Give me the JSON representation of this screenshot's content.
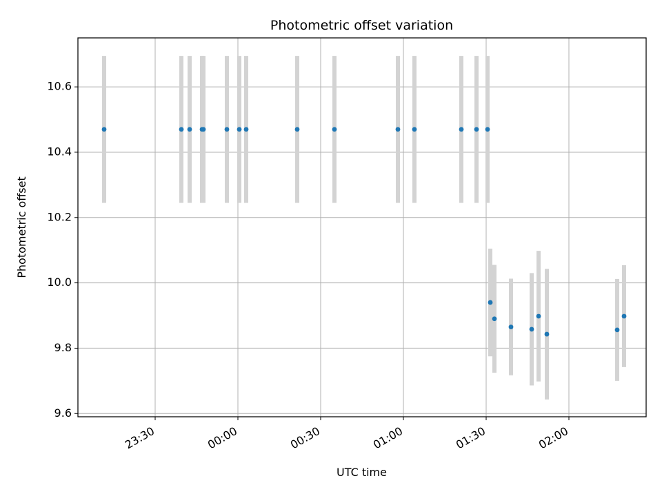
{
  "chart_data": {
    "type": "scatter",
    "title": "Photometric offset variation",
    "xlabel": "UTC time",
    "ylabel": "Photometric offset",
    "x_axis_kind": "time",
    "xlim": [
      "23:02:00",
      "02:28:00"
    ],
    "ylim": [
      9.59,
      10.75
    ],
    "grid": true,
    "x_ticks": [
      "23:30",
      "00:00",
      "00:30",
      "01:00",
      "01:30",
      "02:00"
    ],
    "y_ticks": [
      9.6,
      9.8,
      10.0,
      10.2,
      10.4,
      10.6
    ],
    "y_tick_labels": [
      "9.6",
      "9.8",
      "10.0",
      "10.2",
      "10.4",
      "10.6"
    ],
    "point_color": "#1f77b4",
    "errorbar_color": "#d3d3d3",
    "points": [
      {
        "t": "23:11:30",
        "y": 10.47,
        "err": 0.225
      },
      {
        "t": "23:39:30",
        "y": 10.47,
        "err": 0.225
      },
      {
        "t": "23:42:30",
        "y": 10.47,
        "err": 0.225
      },
      {
        "t": "23:47:00",
        "y": 10.47,
        "err": 0.225
      },
      {
        "t": "23:47:30",
        "y": 10.47,
        "err": 0.225
      },
      {
        "t": "23:56:00",
        "y": 10.47,
        "err": 0.225
      },
      {
        "t": "00:00:30",
        "y": 10.47,
        "err": 0.225
      },
      {
        "t": "00:03:00",
        "y": 10.47,
        "err": 0.225
      },
      {
        "t": "00:21:30",
        "y": 10.47,
        "err": 0.225
      },
      {
        "t": "00:35:00",
        "y": 10.47,
        "err": 0.225
      },
      {
        "t": "00:58:00",
        "y": 10.47,
        "err": 0.225
      },
      {
        "t": "01:04:00",
        "y": 10.47,
        "err": 0.225
      },
      {
        "t": "01:21:00",
        "y": 10.47,
        "err": 0.225
      },
      {
        "t": "01:26:30",
        "y": 10.47,
        "err": 0.225
      },
      {
        "t": "01:30:30",
        "y": 10.47,
        "err": 0.225
      },
      {
        "t": "01:31:30",
        "y": 9.94,
        "err": 0.165
      },
      {
        "t": "01:33:00",
        "y": 9.89,
        "err": 0.165
      },
      {
        "t": "01:39:00",
        "y": 9.865,
        "err": 0.148
      },
      {
        "t": "01:46:30",
        "y": 9.858,
        "err": 0.172
      },
      {
        "t": "01:49:00",
        "y": 9.898,
        "err": 0.2
      },
      {
        "t": "01:52:00",
        "y": 9.843,
        "err": 0.2
      },
      {
        "t": "02:17:30",
        "y": 9.856,
        "err": 0.156
      },
      {
        "t": "02:20:00",
        "y": 9.898,
        "err": 0.156
      }
    ]
  }
}
